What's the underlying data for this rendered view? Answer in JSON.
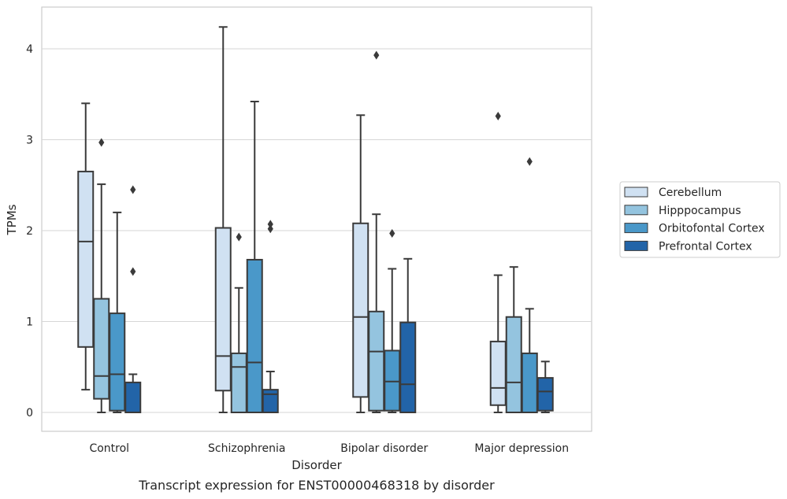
{
  "chart_data": {
    "type": "box",
    "title": "",
    "caption": "Transcript expression for ENST00000468318 by disorder",
    "xlabel": "Disorder",
    "ylabel": "TPMs",
    "ylim": [
      -0.2,
      4.35
    ],
    "yticks": [
      0,
      1,
      2,
      3,
      4
    ],
    "grid": "horizontal",
    "legend_position": "right",
    "categories": [
      "Control",
      "Schizophrenia",
      "Bipolar disorder",
      "Major depression"
    ],
    "series": [
      {
        "name": "Cerebellum",
        "color": "#d0e1f2",
        "boxes": [
          {
            "whisker_low": 0.25,
            "q1": 0.72,
            "median": 1.88,
            "q3": 2.65,
            "whisker_high": 3.4,
            "outliers": []
          },
          {
            "whisker_low": 0.0,
            "q1": 0.24,
            "median": 0.62,
            "q3": 2.03,
            "whisker_high": 4.24,
            "outliers": []
          },
          {
            "whisker_low": 0.0,
            "q1": 0.17,
            "median": 1.05,
            "q3": 2.08,
            "whisker_high": 3.27,
            "outliers": []
          },
          {
            "whisker_low": 0.0,
            "q1": 0.08,
            "median": 0.27,
            "q3": 0.78,
            "whisker_high": 1.51,
            "outliers": [
              3.26
            ]
          }
        ]
      },
      {
        "name": "Hipppocampus",
        "color": "#94c4df",
        "boxes": [
          {
            "whisker_low": 0.0,
            "q1": 0.15,
            "median": 0.4,
            "q3": 1.25,
            "whisker_high": 2.51,
            "outliers": [
              2.97
            ]
          },
          {
            "whisker_low": 0.0,
            "q1": 0.0,
            "median": 0.5,
            "q3": 0.65,
            "whisker_high": 1.37,
            "outliers": [
              1.93
            ]
          },
          {
            "whisker_low": 0.0,
            "q1": 0.02,
            "median": 0.67,
            "q3": 1.11,
            "whisker_high": 2.18,
            "outliers": [
              3.93
            ]
          },
          {
            "whisker_low": 0.0,
            "q1": 0.0,
            "median": 0.33,
            "q3": 1.05,
            "whisker_high": 1.6,
            "outliers": []
          }
        ]
      },
      {
        "name": "Orbitofontal Cortex",
        "color": "#4a98c9",
        "boxes": [
          {
            "whisker_low": 0.0,
            "q1": 0.02,
            "median": 0.42,
            "q3": 1.09,
            "whisker_high": 2.2,
            "outliers": []
          },
          {
            "whisker_low": 0.0,
            "q1": 0.0,
            "median": 0.55,
            "q3": 1.68,
            "whisker_high": 3.42,
            "outliers": []
          },
          {
            "whisker_low": 0.0,
            "q1": 0.02,
            "median": 0.34,
            "q3": 0.68,
            "whisker_high": 1.58,
            "outliers": [
              1.97
            ]
          },
          {
            "whisker_low": 0.0,
            "q1": 0.0,
            "median": 0.0,
            "q3": 0.65,
            "whisker_high": 1.14,
            "outliers": [
              2.76
            ]
          }
        ]
      },
      {
        "name": "Prefrontal Cortex",
        "color": "#2264a8",
        "boxes": [
          {
            "whisker_low": 0.0,
            "q1": 0.0,
            "median": 0.0,
            "q3": 0.33,
            "whisker_high": 0.42,
            "outliers": [
              1.55,
              2.45
            ]
          },
          {
            "whisker_low": 0.0,
            "q1": 0.0,
            "median": 0.2,
            "q3": 0.25,
            "whisker_high": 0.45,
            "outliers": [
              2.02,
              2.07
            ]
          },
          {
            "whisker_low": 0.0,
            "q1": 0.0,
            "median": 0.31,
            "q3": 0.99,
            "whisker_high": 1.69,
            "outliers": []
          },
          {
            "whisker_low": 0.0,
            "q1": 0.02,
            "median": 0.23,
            "q3": 0.38,
            "whisker_high": 0.56,
            "outliers": []
          }
        ]
      }
    ]
  }
}
